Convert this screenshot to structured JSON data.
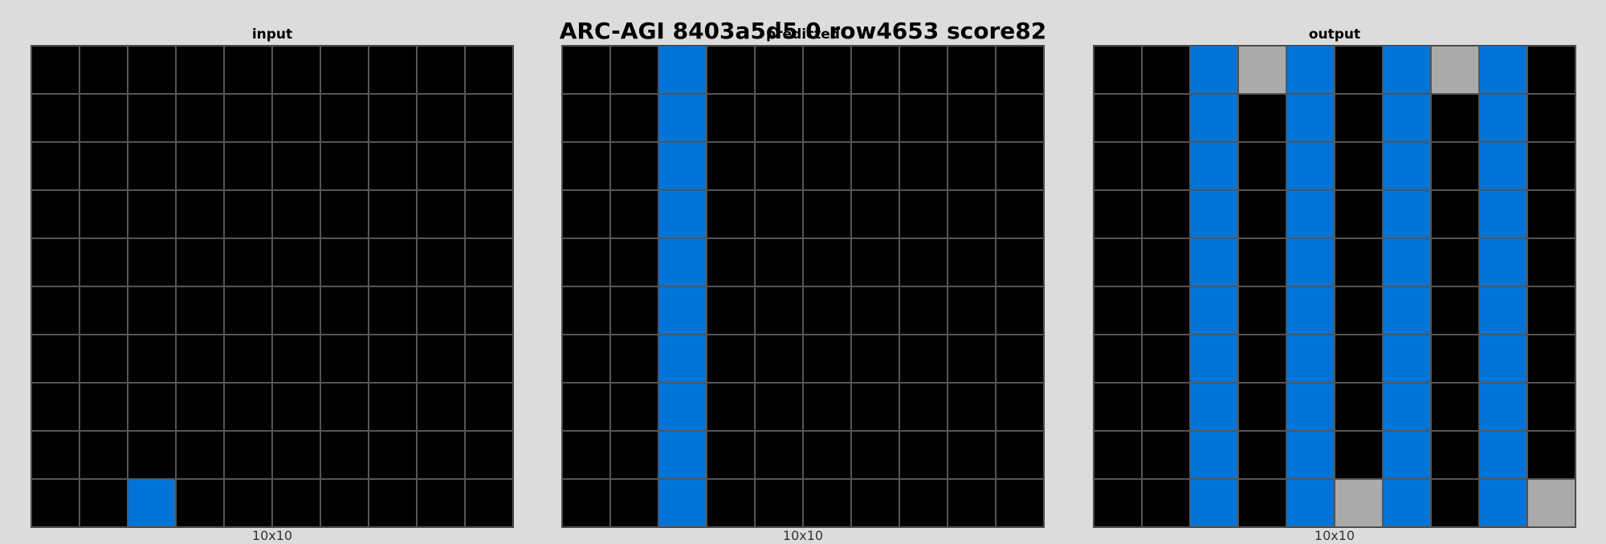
{
  "title": "ARC-AGI 8403a5d5 0 row4653 score82",
  "palette": {
    "0": "#000000",
    "1": "#0074d9",
    "5": "#aaaaaa"
  },
  "panels": [
    {
      "label": "input",
      "dims": "10x10",
      "grid": [
        [
          0,
          0,
          0,
          0,
          0,
          0,
          0,
          0,
          0,
          0
        ],
        [
          0,
          0,
          0,
          0,
          0,
          0,
          0,
          0,
          0,
          0
        ],
        [
          0,
          0,
          0,
          0,
          0,
          0,
          0,
          0,
          0,
          0
        ],
        [
          0,
          0,
          0,
          0,
          0,
          0,
          0,
          0,
          0,
          0
        ],
        [
          0,
          0,
          0,
          0,
          0,
          0,
          0,
          0,
          0,
          0
        ],
        [
          0,
          0,
          0,
          0,
          0,
          0,
          0,
          0,
          0,
          0
        ],
        [
          0,
          0,
          0,
          0,
          0,
          0,
          0,
          0,
          0,
          0
        ],
        [
          0,
          0,
          0,
          0,
          0,
          0,
          0,
          0,
          0,
          0
        ],
        [
          0,
          0,
          0,
          0,
          0,
          0,
          0,
          0,
          0,
          0
        ],
        [
          0,
          0,
          1,
          0,
          0,
          0,
          0,
          0,
          0,
          0
        ]
      ]
    },
    {
      "label": "predicted",
      "dims": "10x10",
      "grid": [
        [
          0,
          0,
          1,
          0,
          0,
          0,
          0,
          0,
          0,
          0
        ],
        [
          0,
          0,
          1,
          0,
          0,
          0,
          0,
          0,
          0,
          0
        ],
        [
          0,
          0,
          1,
          0,
          0,
          0,
          0,
          0,
          0,
          0
        ],
        [
          0,
          0,
          1,
          0,
          0,
          0,
          0,
          0,
          0,
          0
        ],
        [
          0,
          0,
          1,
          0,
          0,
          0,
          0,
          0,
          0,
          0
        ],
        [
          0,
          0,
          1,
          0,
          0,
          0,
          0,
          0,
          0,
          0
        ],
        [
          0,
          0,
          1,
          0,
          0,
          0,
          0,
          0,
          0,
          0
        ],
        [
          0,
          0,
          1,
          0,
          0,
          0,
          0,
          0,
          0,
          0
        ],
        [
          0,
          0,
          1,
          0,
          0,
          0,
          0,
          0,
          0,
          0
        ],
        [
          0,
          0,
          1,
          0,
          0,
          0,
          0,
          0,
          0,
          0
        ]
      ]
    },
    {
      "label": "output",
      "dims": "10x10",
      "grid": [
        [
          0,
          0,
          1,
          5,
          1,
          0,
          1,
          5,
          1,
          0
        ],
        [
          0,
          0,
          1,
          0,
          1,
          0,
          1,
          0,
          1,
          0
        ],
        [
          0,
          0,
          1,
          0,
          1,
          0,
          1,
          0,
          1,
          0
        ],
        [
          0,
          0,
          1,
          0,
          1,
          0,
          1,
          0,
          1,
          0
        ],
        [
          0,
          0,
          1,
          0,
          1,
          0,
          1,
          0,
          1,
          0
        ],
        [
          0,
          0,
          1,
          0,
          1,
          0,
          1,
          0,
          1,
          0
        ],
        [
          0,
          0,
          1,
          0,
          1,
          0,
          1,
          0,
          1,
          0
        ],
        [
          0,
          0,
          1,
          0,
          1,
          0,
          1,
          0,
          1,
          0
        ],
        [
          0,
          0,
          1,
          0,
          1,
          0,
          1,
          0,
          1,
          0
        ],
        [
          0,
          0,
          1,
          0,
          1,
          5,
          1,
          0,
          1,
          5
        ]
      ]
    }
  ]
}
